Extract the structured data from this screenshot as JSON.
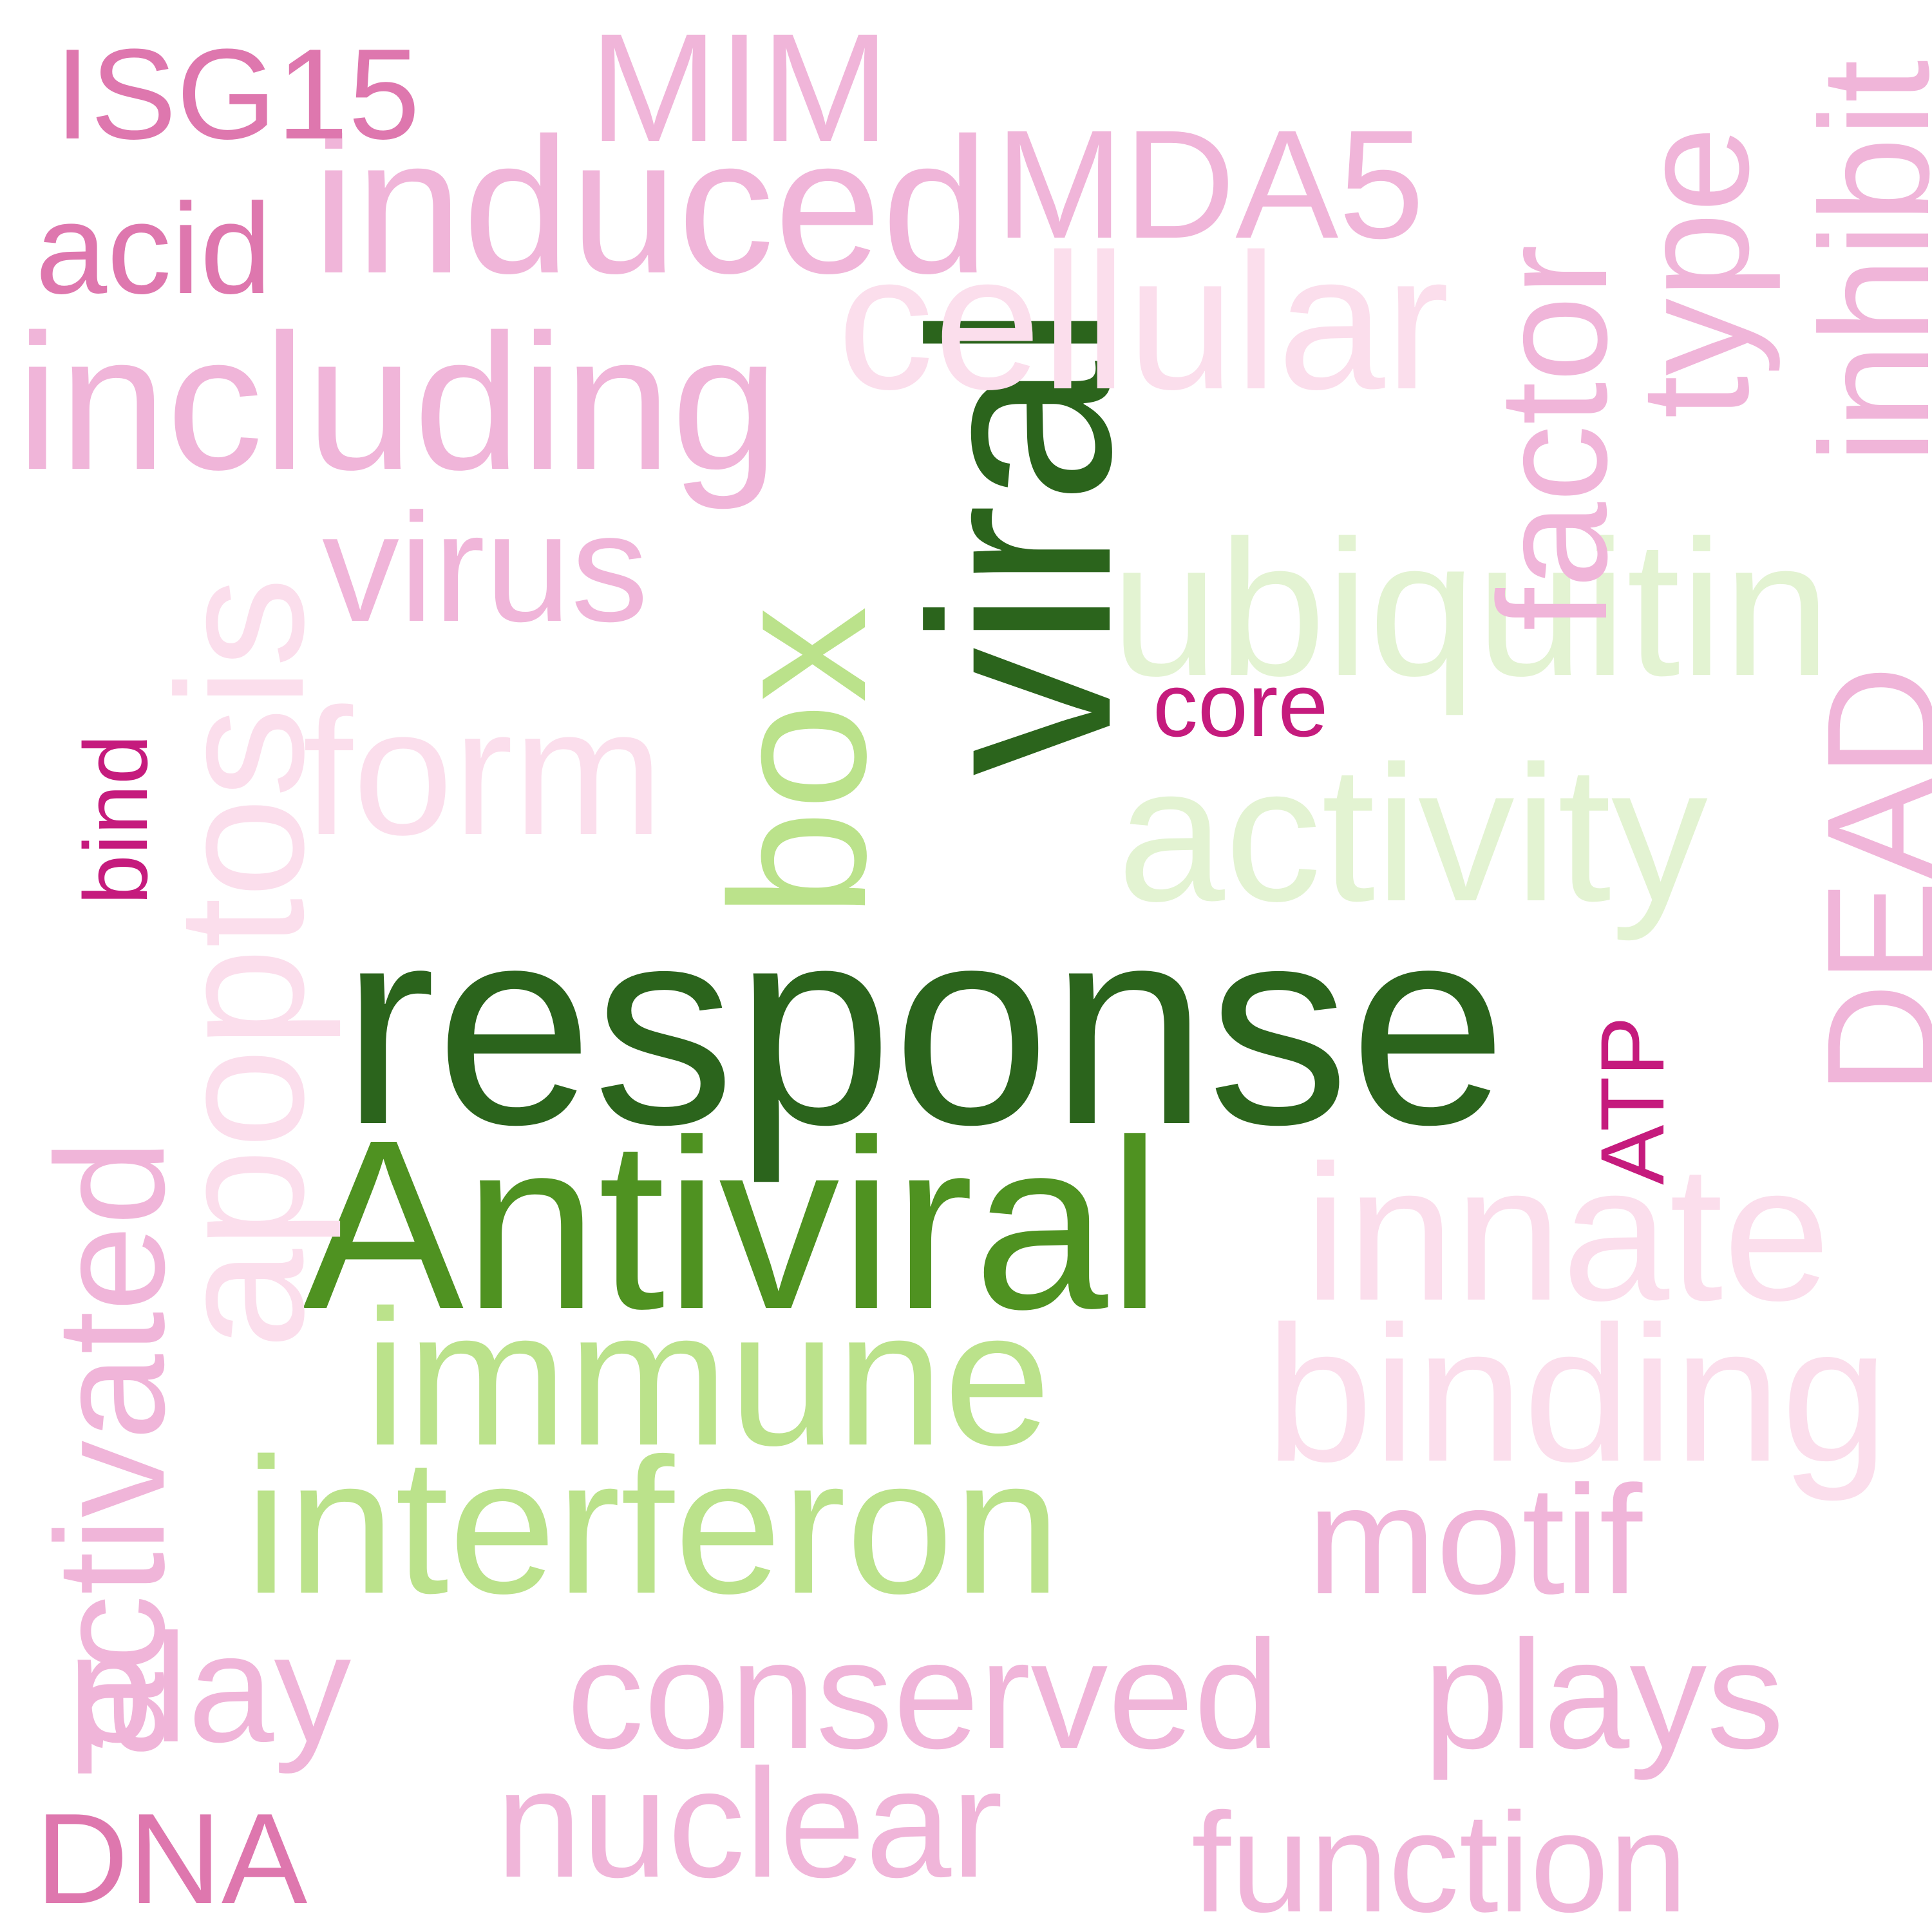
{
  "words": [
    {
      "text": "response",
      "color": "#2b641c"
    },
    {
      "text": "Antiviral",
      "color": "#4f9221"
    },
    {
      "text": "viral",
      "color": "#2b641c"
    },
    {
      "text": "box",
      "color": "#bbe28b"
    },
    {
      "text": "immune",
      "color": "#bbe28b"
    },
    {
      "text": "interferon",
      "color": "#bbe28b"
    },
    {
      "text": "ubiquitin",
      "color": "#e3f3d2"
    },
    {
      "text": "activity",
      "color": "#e3f3d2"
    },
    {
      "text": "cellular",
      "color": "#fbdeec"
    },
    {
      "text": "apoptosis",
      "color": "#fbdeec"
    },
    {
      "text": "form",
      "color": "#fbdeec"
    },
    {
      "text": "innate",
      "color": "#fbdeec"
    },
    {
      "text": "binding",
      "color": "#fbdeec"
    },
    {
      "text": "including",
      "color": "#f0b5d9"
    },
    {
      "text": "induced",
      "color": "#f0b5d9"
    },
    {
      "text": "MIM",
      "color": "#f0b5d9"
    },
    {
      "text": "MDA5",
      "color": "#f0b5d9"
    },
    {
      "text": "factor",
      "color": "#f0b5d9"
    },
    {
      "text": "type",
      "color": "#f0b5d9"
    },
    {
      "text": "inhibit",
      "color": "#f0b5d9"
    },
    {
      "text": "virus",
      "color": "#f0b5d9"
    },
    {
      "text": "DEAD",
      "color": "#f0b5d9"
    },
    {
      "text": "activated",
      "color": "#f0b5d9"
    },
    {
      "text": "motif",
      "color": "#f0b5d9"
    },
    {
      "text": "conserved",
      "color": "#f0b5d9"
    },
    {
      "text": "plays",
      "color": "#f0b5d9"
    },
    {
      "text": "play",
      "color": "#f0b5d9"
    },
    {
      "text": "nuclear",
      "color": "#f0b5d9"
    },
    {
      "text": "function",
      "color": "#f0b5d9"
    },
    {
      "text": "ISG15",
      "color": "#de77ae"
    },
    {
      "text": "acid",
      "color": "#de77ae"
    },
    {
      "text": "DNA",
      "color": "#de77ae"
    },
    {
      "text": "core",
      "color": "#c51b7d"
    },
    {
      "text": "bind",
      "color": "#c51b7d"
    },
    {
      "text": "ATP",
      "color": "#c51b7d"
    }
  ]
}
